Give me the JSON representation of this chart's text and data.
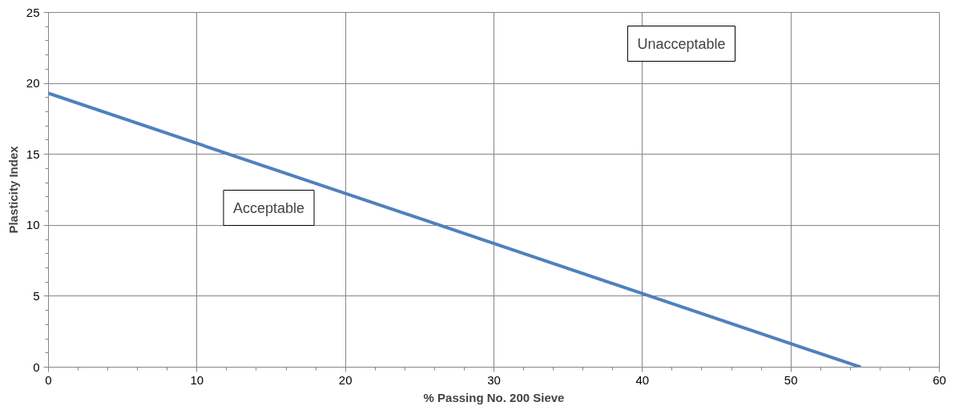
{
  "chart_data": {
    "type": "line",
    "xlabel": "% Passing No. 200 Sieve",
    "ylabel": "Plasticity Index",
    "x": [
      0,
      54.7
    ],
    "series": [
      {
        "color": "#4f81bd",
        "values": [
          19.3,
          0
        ]
      }
    ],
    "xlim": [
      0,
      60
    ],
    "ylim": [
      0,
      25
    ],
    "xticks": [
      0,
      10,
      20,
      30,
      40,
      50,
      60
    ],
    "yticks": [
      0,
      5,
      10,
      15,
      20,
      25
    ],
    "grid": true,
    "marker": "none",
    "line_style": "solid",
    "annotations": [
      "Unacceptable",
      "Acceptable"
    ]
  }
}
